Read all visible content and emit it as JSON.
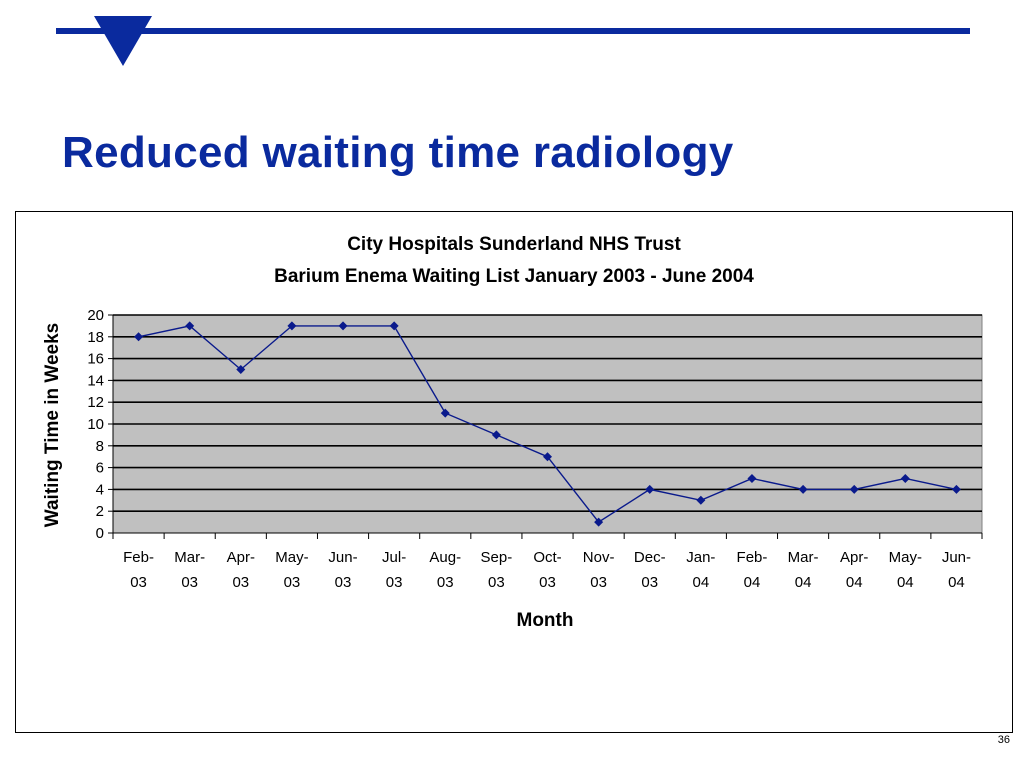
{
  "slide": {
    "title": "Reduced waiting time radiology",
    "page_number": "36",
    "accent_color": "#0a2a9e"
  },
  "chart_data": {
    "type": "line",
    "title": "City Hospitals Sunderland NHS Trust",
    "subtitle": "Barium Enema Waiting List January 2003 - June 2004",
    "xlabel": "Month",
    "ylabel": "Waiting Time in Weeks",
    "categories": [
      [
        "Feb-",
        "03"
      ],
      [
        "Mar-",
        "03"
      ],
      [
        "Apr-",
        "03"
      ],
      [
        "May-",
        "03"
      ],
      [
        "Jun-",
        "03"
      ],
      [
        "Jul-",
        "03"
      ],
      [
        "Aug-",
        "03"
      ],
      [
        "Sep-",
        "03"
      ],
      [
        "Oct-",
        "03"
      ],
      [
        "Nov-",
        "03"
      ],
      [
        "Dec-",
        "03"
      ],
      [
        "Jan-",
        "04"
      ],
      [
        "Feb-",
        "04"
      ],
      [
        "Mar-",
        "04"
      ],
      [
        "Apr-",
        "04"
      ],
      [
        "May-",
        "04"
      ],
      [
        "Jun-",
        "04"
      ]
    ],
    "values": [
      18,
      19,
      15,
      19,
      19,
      19,
      11,
      9,
      7,
      1,
      4,
      3,
      5,
      4,
      4,
      5,
      4
    ],
    "ylim": [
      0,
      20
    ],
    "yticks": [
      0,
      2,
      4,
      6,
      8,
      10,
      12,
      14,
      16,
      18,
      20
    ],
    "grid": true,
    "legend": "none",
    "line_color": "#0a1a8c",
    "plot_background": "#c0c0c0"
  }
}
